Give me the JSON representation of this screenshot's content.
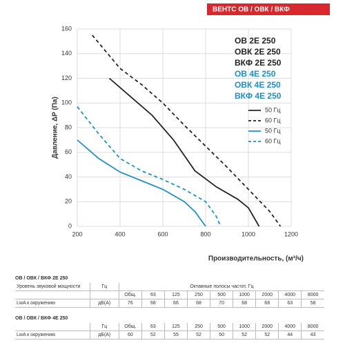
{
  "header": "ВЕНТС ОВ / ОВК / ВКФ",
  "chart_data": {
    "type": "line",
    "y_label": "Давление, ΔP (Па)",
    "x_label": "Производительность, (м³/ч)",
    "xlim": [
      200,
      1200
    ],
    "ylim": [
      0,
      160
    ],
    "xticks": [
      200,
      400,
      600,
      800,
      1000,
      1200
    ],
    "yticks": [
      0,
      20,
      40,
      60,
      80,
      100,
      120,
      140,
      160
    ],
    "grid": true,
    "models": [
      {
        "label": "ОВ 2Е 250",
        "color": "#222222"
      },
      {
        "label": "ОВК 2Е 250",
        "color": "#222222"
      },
      {
        "label": "ВКФ 2Е 250",
        "color": "#222222"
      },
      {
        "label": "ОВ 4Е 250",
        "color": "#1f8fc7"
      },
      {
        "label": "ОВК 4Е 250",
        "color": "#1f8fc7"
      },
      {
        "label": "ВКФ 4Е 250",
        "color": "#1f8fc7"
      }
    ],
    "series": [
      {
        "name": "50 Гц",
        "color": "#222222",
        "dash": false,
        "x": [
          350,
          450,
          550,
          650,
          750,
          850,
          950,
          1000,
          1050
        ],
        "values": [
          120,
          105,
          90,
          70,
          45,
          32,
          22,
          15,
          0
        ]
      },
      {
        "name": "60 Гц",
        "color": "#222222",
        "dash": true,
        "x": [
          270,
          400,
          500,
          600,
          700,
          800,
          900,
          1000,
          1100,
          1150
        ],
        "values": [
          155,
          128,
          115,
          100,
          82,
          65,
          48,
          30,
          12,
          0
        ]
      },
      {
        "name": "50 Гц",
        "color": "#1f8fc7",
        "dash": false,
        "x": [
          200,
          300,
          400,
          500,
          600,
          700,
          750,
          800
        ],
        "values": [
          70,
          55,
          44,
          37,
          30,
          20,
          12,
          0
        ]
      },
      {
        "name": "60 Гц",
        "color": "#1f8fc7",
        "dash": true,
        "x": [
          200,
          300,
          400,
          500,
          600,
          700,
          800,
          850,
          870
        ],
        "values": [
          97,
          75,
          55,
          45,
          38,
          30,
          20,
          8,
          0
        ]
      }
    ]
  },
  "tables": [
    {
      "title": "ОВ / ОВК / ВКФ 2Е 250",
      "rows": [
        [
          "Уровень звуковой мощности",
          "Гц",
          "Октавные полосы частот, Гц"
        ],
        [
          null,
          null,
          "Общ.",
          "63",
          "125",
          "250",
          "500",
          "1000",
          "2000",
          "4000",
          "8000"
        ],
        [
          "LwA к окружению",
          "дБ(А)",
          76,
          68,
          66,
          68,
          70,
          68,
          68,
          63,
          58
        ]
      ]
    },
    {
      "title": "ОВ / ОВК / ВКФ 4Е 250",
      "rows": [
        [
          null,
          "Гц",
          "Общ.",
          "63",
          "125",
          "250",
          "500",
          "1000",
          "2000",
          "4000",
          "8000"
        ],
        [
          "LwA к окружению",
          "дБ(А)",
          60,
          52,
          55,
          52,
          50,
          52,
          52,
          44,
          43
        ]
      ]
    }
  ]
}
